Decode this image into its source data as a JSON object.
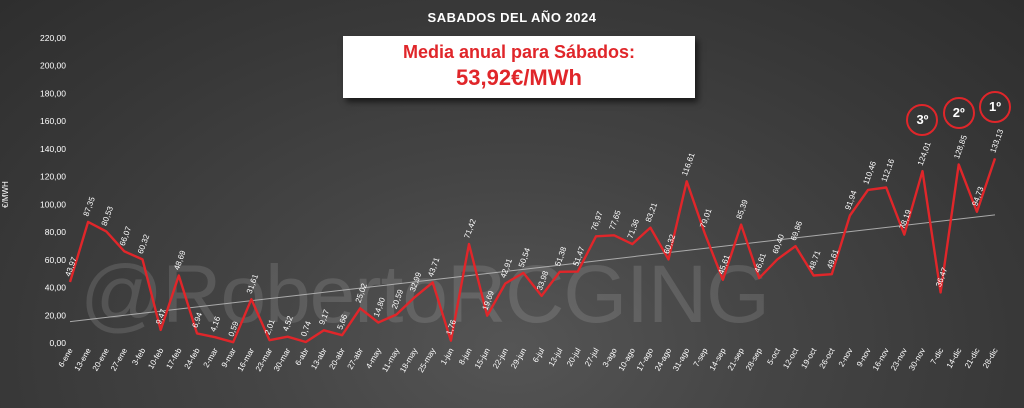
{
  "title": "SABADOS DEL AÑO 2024",
  "callout": {
    "line1": "Media anual para Sábados:",
    "line2": "53,92€/MWh"
  },
  "watermark": "@RobertoRCGING",
  "colors": {
    "line": "#e0262a",
    "trend": "#bdbdbd",
    "text": "#ffffff"
  },
  "ranks": [
    {
      "label": "3º",
      "category": "30-nov"
    },
    {
      "label": "2º",
      "category": "14-dic"
    },
    {
      "label": "1º",
      "category": "28-dic"
    }
  ],
  "chart_data": {
    "type": "line",
    "ylabel": "€/MWH",
    "ylim": [
      0,
      220
    ],
    "yticks": [
      "0,00",
      "20,00",
      "40,00",
      "60,00",
      "80,00",
      "100,00",
      "120,00",
      "140,00",
      "160,00",
      "180,00",
      "200,00",
      "220,00"
    ],
    "grid": false,
    "trendline": true,
    "categories": [
      "6-ene",
      "13-ene",
      "20-ene",
      "27-ene",
      "3-feb",
      "10-feb",
      "17-feb",
      "24-feb",
      "2-mar",
      "9-mar",
      "16-mar",
      "23-mar",
      "30-mar",
      "6-abr",
      "13-abr",
      "20-abr",
      "27-abr",
      "4-may",
      "11-may",
      "18-may",
      "25-may",
      "1-jun",
      "8-jun",
      "15-jun",
      "22-jun",
      "29-jun",
      "6-jul",
      "13-jul",
      "20-jul",
      "27-jul",
      "3-ago",
      "10-ago",
      "17-ago",
      "24-ago",
      "31-ago",
      "7-sep",
      "14-sep",
      "21-sep",
      "28-sep",
      "5-oct",
      "12-oct",
      "19-oct",
      "26-oct",
      "2-nov",
      "9-nov",
      "16-nov",
      "23-nov",
      "30-nov",
      "7-dic",
      "14-dic",
      "21-dic",
      "28-dic"
    ],
    "values": [
      43.97,
      87.35,
      80.53,
      66.07,
      60.32,
      9.47,
      48.69,
      6.94,
      4.16,
      0.59,
      31.61,
      2.01,
      4.52,
      0.74,
      9.17,
      5.66,
      25.02,
      14.8,
      20.59,
      32.99,
      43.71,
      1.76,
      71.42,
      19.69,
      42.91,
      50.54,
      33.98,
      51.38,
      51.47,
      76.97,
      77.65,
      71.36,
      83.21,
      60.32,
      116.61,
      79.01,
      45.61,
      85.39,
      46.81,
      60.4,
      69.86,
      48.71,
      49.61,
      91.94,
      110.46,
      112.16,
      78.19,
      124.01,
      36.47,
      128.85,
      94.73,
      133.13
    ],
    "labels": [
      "43,97",
      "87,35",
      "80,53",
      "66,07",
      "60,32",
      "9,47",
      "48,69",
      "6,94",
      "4,16",
      "0,59",
      "31,61",
      "2,01",
      "4,52",
      "0,74",
      "9,17",
      "5,66",
      "25,02",
      "14,80",
      "20,59",
      "32,99",
      "43,71",
      "1,76",
      "71,42",
      "19,69",
      "42,91",
      "50,54",
      "33,98",
      "51,38",
      "51,47",
      "76,97",
      "77,65",
      "71,36",
      "83,21",
      "60,32",
      "116,61",
      "79,01",
      "45,61",
      "85,39",
      "46,81",
      "60,40",
      "69,86",
      "48,71",
      "49,61",
      "91,94",
      "110,46",
      "112,16",
      "78,19",
      "124,01",
      "36,47",
      "128,85",
      "94,73",
      "133,13"
    ]
  }
}
